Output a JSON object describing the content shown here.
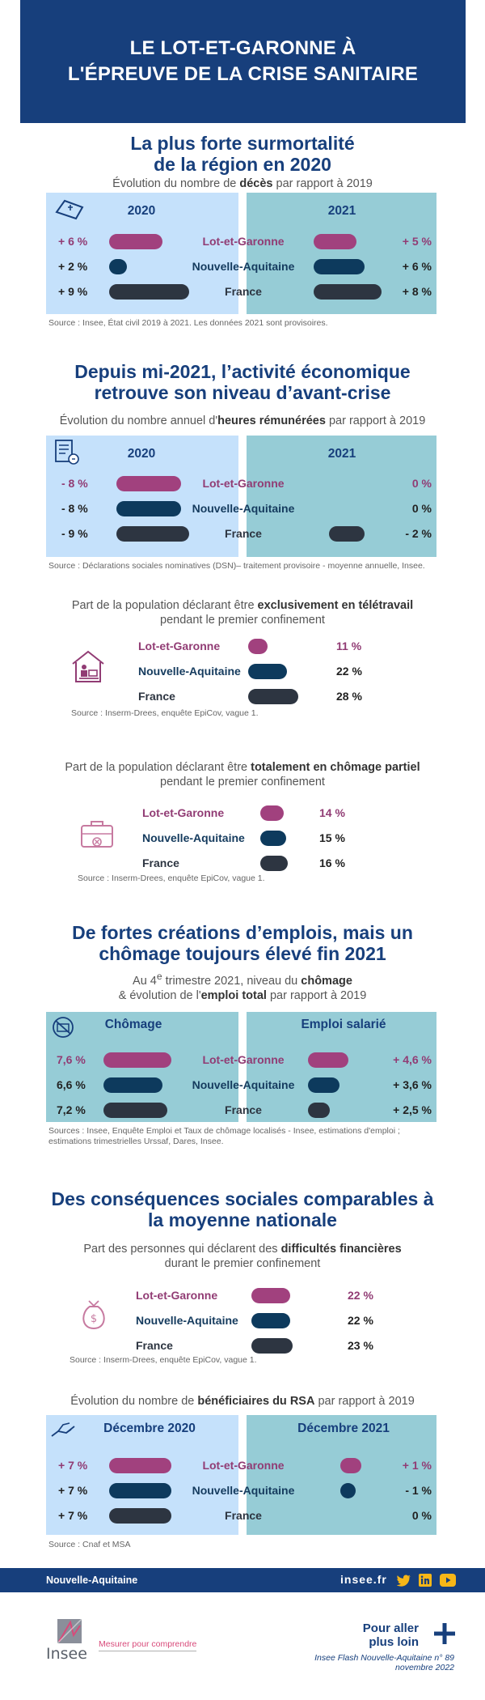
{
  "header": {
    "line1": "LE LOT-ET-GARONNE À",
    "line2": "L'ÉPREUVE DE LA CRISE SANITAIRE"
  },
  "s1": {
    "title1": "La plus forte surmortalité",
    "title2": "de la région en 2020",
    "sub_pre": "Évolution du nombre de ",
    "sub_bold": "décès",
    "sub_post": " par rapport à 2019",
    "year_left": "2020",
    "year_right": "2021",
    "rows": [
      {
        "label": "Lot-et-Garonne",
        "left": "+ 6 %",
        "right": "+ 5 %"
      },
      {
        "label": "Nouvelle-Aquitaine",
        "left": "+ 2 %",
        "right": "+ 6 %"
      },
      {
        "label": "France",
        "left": "+ 9 %",
        "right": "+ 8 %"
      }
    ],
    "bars_left": [
      6,
      2,
      9
    ],
    "bars_right": [
      5,
      6,
      8
    ],
    "source": "Source : Insee, État civil 2019 à 2021. Les données 2021 sont provisoires."
  },
  "s2": {
    "title1": "Depuis mi-2021, l’activité économique",
    "title2": "retrouve son niveau d’avant-crise",
    "sub_pre": "Évolution du nombre annuel d'",
    "sub_bold": "heures rémunérées",
    "sub_post": " par rapport à 2019",
    "year_left": "2020",
    "year_right": "2021",
    "rows": [
      {
        "label": "Lot-et-Garonne",
        "left": "- 8 %",
        "right": "0 %"
      },
      {
        "label": "Nouvelle-Aquitaine",
        "left": "- 8 %",
        "right": "0 %"
      },
      {
        "label": "France",
        "left": "- 9 %",
        "right": "- 2 %"
      }
    ],
    "bars_left": [
      8,
      8,
      9
    ],
    "bars_right": [
      0,
      0,
      2
    ],
    "source": "Source : Déclarations sociales nominatives (DSN)– traitement provisoire - moyenne annuelle, Insee."
  },
  "s3": {
    "sub_pre": "Part de la population déclarant être ",
    "sub_bold": "exclusivement en télétravail",
    "sub2": "pendant le premier confinement",
    "rows": [
      {
        "label": "Lot-et-Garonne",
        "value": "11 %"
      },
      {
        "label": "Nouvelle-Aquitaine",
        "value": "22 %"
      },
      {
        "label": "France",
        "value": "28 %"
      }
    ],
    "bars": [
      11,
      22,
      28
    ],
    "source": "Source : Inserm-Drees, enquête EpiCov, vague 1."
  },
  "s4": {
    "sub_pre": "Part de la population déclarant être ",
    "sub_bold": "totalement en chômage partiel",
    "sub2": "pendant le premier confinement",
    "rows": [
      {
        "label": "Lot-et-Garonne",
        "value": "14 %"
      },
      {
        "label": "Nouvelle-Aquitaine",
        "value": "15 %"
      },
      {
        "label": "France",
        "value": "16 %"
      }
    ],
    "bars": [
      14,
      15,
      16
    ],
    "source": "Source : Inserm-Drees, enquête EpiCov, vague 1."
  },
  "s5": {
    "title1": "De fortes créations d’emplois, mais un",
    "title2": "chômage toujours élevé fin 2021",
    "sub_pre": "Au 4",
    "sub_sup": "e",
    "sub_mid": " trimestre 2021, niveau du ",
    "sub_bold1": "chômage",
    "sub2_pre": "& évolution de l'",
    "sub2_bold": "emploi total",
    "sub2_post": " par rapport à 2019",
    "col_left": "Chômage",
    "col_right": "Emploi salarié",
    "rows": [
      {
        "label": "Lot-et-Garonne",
        "left": "7,6 %",
        "right": "+ 4,6 %"
      },
      {
        "label": "Nouvelle-Aquitaine",
        "left": "6,6 %",
        "right": "+ 3,6 %"
      },
      {
        "label": "France",
        "left": "7,2 %",
        "right": "+ 2,5 %"
      }
    ],
    "bars_left": [
      7.6,
      6.6,
      7.2
    ],
    "bars_right": [
      4.6,
      3.6,
      2.5
    ],
    "source1": "Sources :  Insee, Enquête Emploi et Taux de chômage localisés - Insee, estimations d'emploi ;",
    "source2": "estimations trimestrielles Urssaf, Dares, Insee."
  },
  "s6": {
    "title1": "Des conséquences sociales comparables à",
    "title2": "la moyenne nationale",
    "sub_pre": "Part des personnes qui déclarent des ",
    "sub_bold": "difficultés financières",
    "sub2": "durant le premier confinement",
    "rows": [
      {
        "label": "Lot-et-Garonne",
        "value": "22 %"
      },
      {
        "label": "Nouvelle-Aquitaine",
        "value": "22 %"
      },
      {
        "label": "France",
        "value": "23 %"
      }
    ],
    "bars": [
      22,
      22,
      23
    ],
    "source": "Source : Inserm-Drees, enquête EpiCov, vague 1."
  },
  "s7": {
    "sub_pre": "Évolution du nombre de ",
    "sub_bold": "bénéficiaires du RSA",
    "sub_post": " par rapport à 2019",
    "col_left": "Décembre 2020",
    "col_right": "Décembre 2021",
    "rows": [
      {
        "label": "Lot-et-Garonne",
        "left": "+ 7 %",
        "right": "+ 1 %"
      },
      {
        "label": "Nouvelle-Aquitaine",
        "left": "+ 7 %",
        "right": "- 1 %"
      },
      {
        "label": "France",
        "left": "+ 7 %",
        "right": "0 %"
      }
    ],
    "bars_left": [
      7,
      7,
      7
    ],
    "bars_right": [
      1,
      1,
      0
    ],
    "source": "Source : Cnaf et MSA"
  },
  "footer": {
    "region": "Nouvelle-Aquitaine",
    "site": "insee.fr",
    "logo_text": "Insee",
    "tagline": "Mesurer pour comprendre",
    "more1": "Pour aller",
    "more2": "plus loin",
    "pub1": "Insee Flash Nouvelle-Aquitaine n° 89",
    "pub2": "novembre 2022"
  },
  "colors": {
    "navy": "#173f7c",
    "lot": "#a1417e",
    "na": "#0d3a5d",
    "france": "#2d3541",
    "panel_light": "#c5e1fb",
    "panel_teal": "#96ccd6"
  }
}
